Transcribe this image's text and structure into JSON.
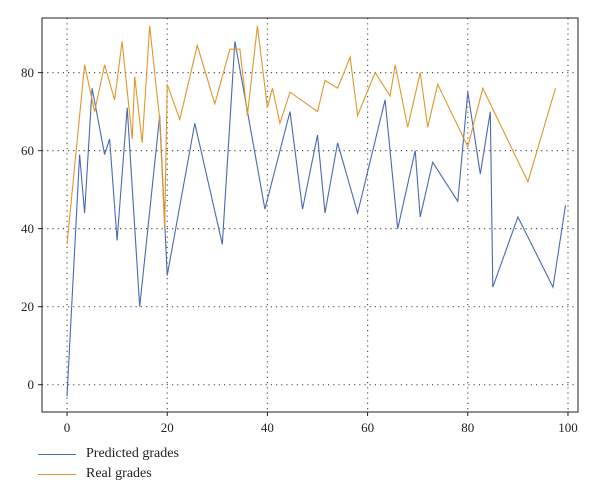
{
  "chart_data": {
    "type": "line",
    "xlim": [
      -5,
      102
    ],
    "ylim": [
      -7,
      94
    ],
    "xticks": [
      0,
      20,
      40,
      60,
      80,
      100
    ],
    "yticks": [
      0,
      20,
      40,
      60,
      80
    ],
    "grid": true,
    "legend_position": "bottom-left",
    "series": [
      {
        "name": "Predicted grades",
        "color": "#4a68b4",
        "x": [
          0,
          2.5,
          3.5,
          5,
          7.5,
          8.5,
          10,
          12,
          14.5,
          18.5,
          20,
          25.5,
          31,
          33.5,
          39.5,
          44.5,
          47,
          50,
          51.5,
          54,
          58,
          63.5,
          66,
          69.5,
          70.5,
          73,
          78,
          80,
          82.5,
          84.5,
          85,
          90,
          97,
          99.5
        ],
        "values": [
          -3,
          59,
          44,
          76,
          59,
          63,
          37,
          71,
          20,
          69,
          28,
          67,
          36,
          88,
          45,
          70,
          45,
          64,
          44,
          62,
          44,
          73,
          40,
          60,
          43,
          57,
          47,
          75,
          54,
          70,
          25,
          43,
          25,
          46
        ]
      },
      {
        "name": "Real grades",
        "color": "#e0962a",
        "x": [
          0,
          3.5,
          5.5,
          7.5,
          9.5,
          11,
          13,
          13.5,
          15,
          16.5,
          18.5,
          19.5,
          20,
          22.5,
          26,
          29.5,
          32.5,
          34.5,
          36,
          38,
          40,
          41,
          42.5,
          44.5,
          50,
          51.5,
          54,
          56.5,
          58,
          61.5,
          64.5,
          65.5,
          68,
          70.5,
          72,
          74,
          80,
          83,
          92,
          97.5
        ],
        "values": [
          36,
          82,
          70,
          82,
          73,
          88,
          63,
          79,
          62,
          92,
          68,
          40,
          77,
          68,
          87,
          72,
          86,
          86,
          69,
          92,
          71,
          76,
          67,
          75,
          70,
          78,
          76,
          84,
          69,
          80,
          74,
          82,
          66,
          80,
          66,
          77,
          61,
          76,
          52,
          76
        ]
      }
    ]
  }
}
